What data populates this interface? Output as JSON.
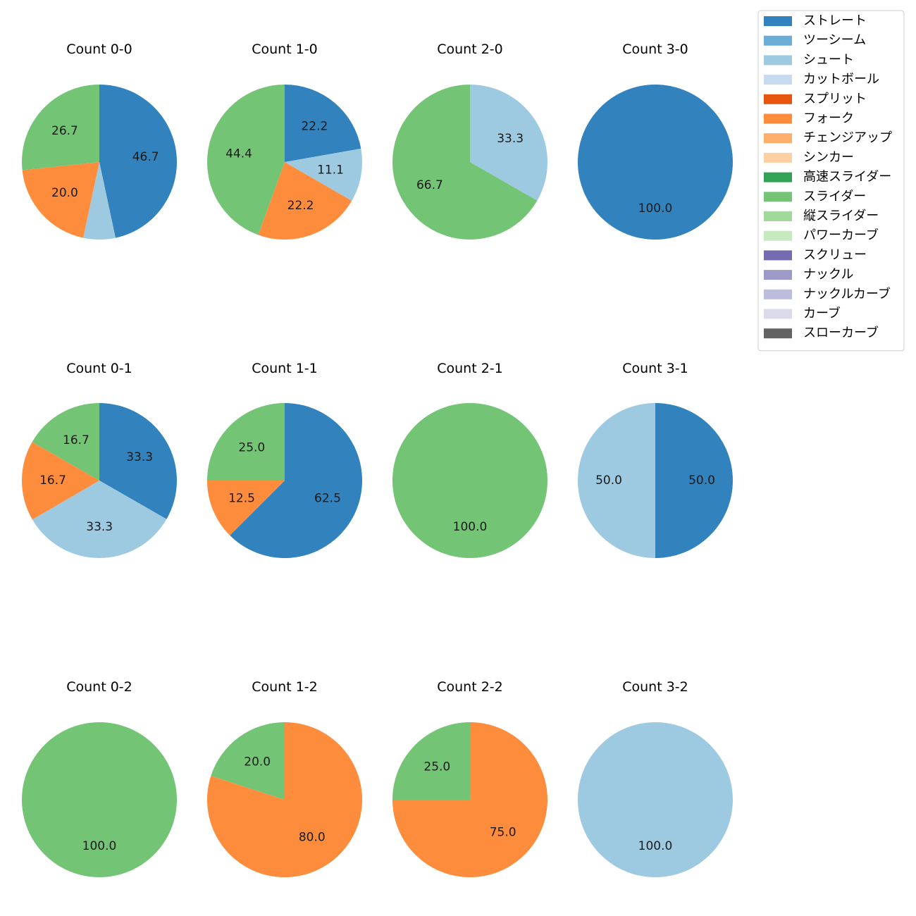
{
  "colors": {
    "ストレート": "#3182bd",
    "ツーシーム": "#6baed6",
    "シュート": "#9ecae1",
    "カットボール": "#c6dbef",
    "スプリット": "#e6550d",
    "フォーク": "#fd8d3c",
    "チェンジアップ": "#fdae6b",
    "シンカー": "#fdd0a2",
    "高速スライダー": "#31a354",
    "スライダー": "#74c476",
    "縦スライダー": "#a1d99b",
    "パワーカーブ": "#c7e9c0",
    "スクリュー": "#756bb1",
    "ナックル": "#9e9ac8",
    "ナックルカーブ": "#bcbddc",
    "カーブ": "#dadaeb",
    "スローカーブ": "#636363"
  },
  "chart_data": {
    "type": "pie",
    "legend_position": "top-right",
    "legend": [
      "ストレート",
      "ツーシーム",
      "シュート",
      "カットボール",
      "スプリット",
      "フォーク",
      "チェンジアップ",
      "シンカー",
      "高速スライダー",
      "スライダー",
      "縦スライダー",
      "パワーカーブ",
      "スクリュー",
      "ナックル",
      "ナックルカーブ",
      "カーブ",
      "スローカーブ"
    ],
    "pies": [
      {
        "title": "Count 0-0",
        "slices": [
          {
            "category": "ストレート",
            "value": 46.7,
            "label": "46.7"
          },
          {
            "category": "シュート",
            "value": 6.7,
            "label": ""
          },
          {
            "category": "フォーク",
            "value": 20.0,
            "label": "20.0"
          },
          {
            "category": "スライダー",
            "value": 26.7,
            "label": "26.7"
          }
        ]
      },
      {
        "title": "Count 1-0",
        "slices": [
          {
            "category": "ストレート",
            "value": 22.2,
            "label": "22.2"
          },
          {
            "category": "シュート",
            "value": 11.1,
            "label": "11.1"
          },
          {
            "category": "フォーク",
            "value": 22.2,
            "label": "22.2"
          },
          {
            "category": "スライダー",
            "value": 44.4,
            "label": "44.4"
          }
        ]
      },
      {
        "title": "Count 2-0",
        "slices": [
          {
            "category": "シュート",
            "value": 33.3,
            "label": "33.3"
          },
          {
            "category": "スライダー",
            "value": 66.7,
            "label": "66.7"
          }
        ]
      },
      {
        "title": "Count 3-0",
        "slices": [
          {
            "category": "ストレート",
            "value": 100.0,
            "label": "100.0"
          }
        ]
      },
      {
        "title": "Count 0-1",
        "slices": [
          {
            "category": "ストレート",
            "value": 33.3,
            "label": "33.3"
          },
          {
            "category": "シュート",
            "value": 33.3,
            "label": "33.3"
          },
          {
            "category": "フォーク",
            "value": 16.7,
            "label": "16.7"
          },
          {
            "category": "スライダー",
            "value": 16.7,
            "label": "16.7"
          }
        ]
      },
      {
        "title": "Count 1-1",
        "slices": [
          {
            "category": "ストレート",
            "value": 62.5,
            "label": "62.5"
          },
          {
            "category": "フォーク",
            "value": 12.5,
            "label": "12.5"
          },
          {
            "category": "スライダー",
            "value": 25.0,
            "label": "25.0"
          }
        ]
      },
      {
        "title": "Count 2-1",
        "slices": [
          {
            "category": "スライダー",
            "value": 100.0,
            "label": "100.0"
          }
        ]
      },
      {
        "title": "Count 3-1",
        "slices": [
          {
            "category": "ストレート",
            "value": 50.0,
            "label": "50.0"
          },
          {
            "category": "シュート",
            "value": 50.0,
            "label": "50.0"
          }
        ]
      },
      {
        "title": "Count 0-2",
        "slices": [
          {
            "category": "スライダー",
            "value": 100.0,
            "label": "100.0"
          }
        ]
      },
      {
        "title": "Count 1-2",
        "slices": [
          {
            "category": "フォーク",
            "value": 80.0,
            "label": "80.0"
          },
          {
            "category": "スライダー",
            "value": 20.0,
            "label": "20.0"
          }
        ]
      },
      {
        "title": "Count 2-2",
        "slices": [
          {
            "category": "フォーク",
            "value": 75.0,
            "label": "75.0"
          },
          {
            "category": "スライダー",
            "value": 25.0,
            "label": "25.0"
          }
        ]
      },
      {
        "title": "Count 3-2",
        "slices": [
          {
            "category": "シュート",
            "value": 100.0,
            "label": "100.0"
          }
        ]
      }
    ]
  }
}
